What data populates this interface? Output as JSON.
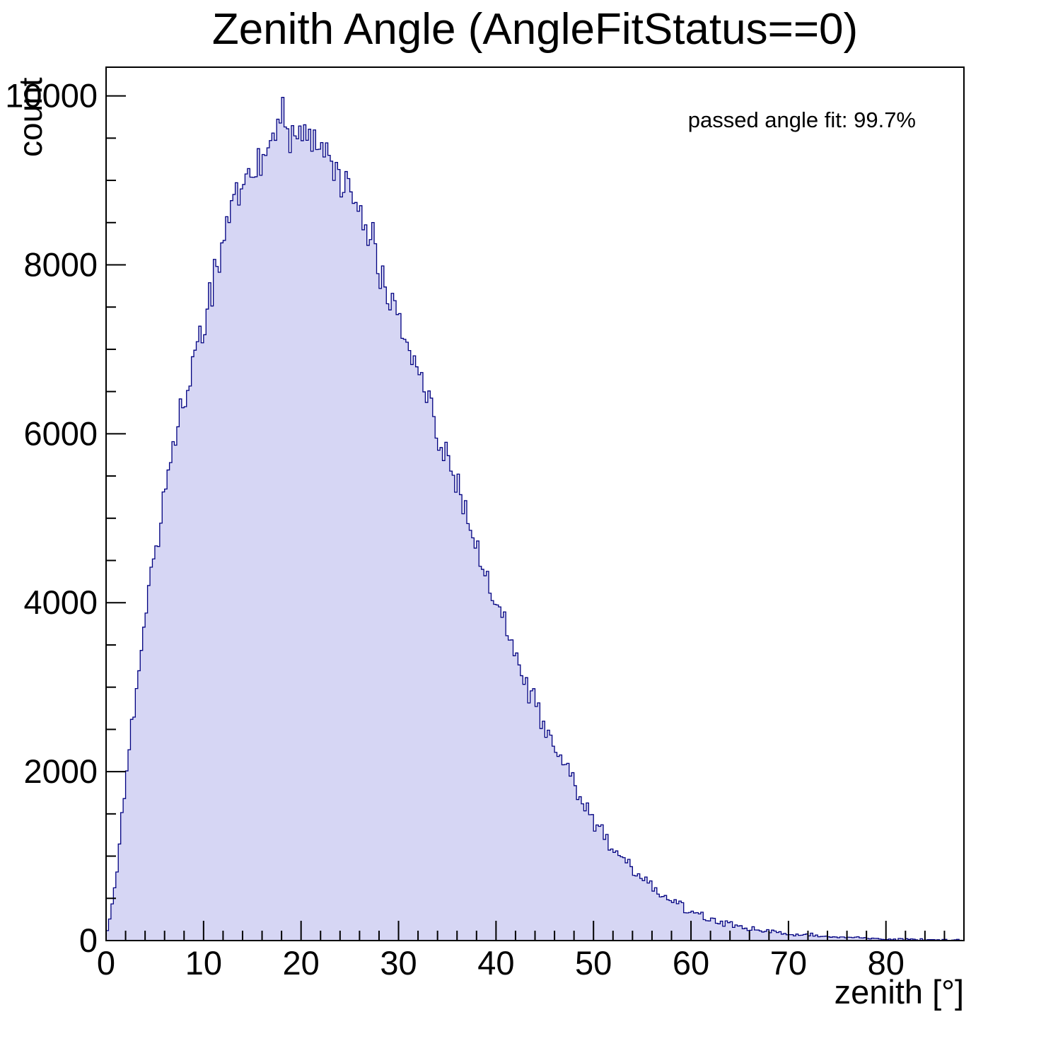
{
  "chart_data": {
    "type": "bar",
    "title": "Zenith Angle (AngleFitStatus==0)",
    "xlabel": "zenith [°]",
    "ylabel": "count",
    "annotation": "passed angle fit: 99.7%",
    "xlim": [
      0,
      88
    ],
    "ylim": [
      0,
      10340
    ],
    "x_major_ticks": [
      0,
      10,
      20,
      30,
      40,
      50,
      60,
      70,
      80
    ],
    "x_minor_step": 2,
    "y_major_ticks": [
      0,
      2000,
      4000,
      6000,
      8000,
      10000
    ],
    "y_minor_step": 500,
    "grid": false,
    "legend_position": "none",
    "bin_width_deg": 0.25,
    "anchors": {
      "zenith_deg": [
        0,
        1,
        2,
        3,
        4,
        5,
        6,
        7,
        8,
        9,
        10,
        11,
        12,
        13,
        14,
        15,
        16,
        17,
        18,
        19,
        20,
        21,
        22,
        23,
        24,
        25,
        26,
        27,
        28,
        29,
        30,
        31,
        32,
        33,
        34,
        35,
        36,
        37,
        38,
        39,
        40,
        41,
        42,
        43,
        44,
        45,
        46,
        47,
        48,
        49,
        50,
        51,
        52,
        53,
        54,
        55,
        56,
        57,
        58,
        59,
        60,
        61,
        62,
        63,
        64,
        65,
        66,
        67,
        68,
        69,
        70,
        71,
        72,
        73,
        74,
        75,
        76,
        77,
        78,
        79,
        80,
        81,
        82,
        83,
        84,
        85,
        86,
        87,
        88
      ],
      "count": [
        30,
        700,
        1900,
        2900,
        3800,
        4600,
        5300,
        5900,
        6400,
        6900,
        7300,
        7900,
        8300,
        8600,
        8900,
        9100,
        9300,
        9500,
        9650,
        9550,
        9500,
        9450,
        9400,
        9300,
        9150,
        8950,
        8650,
        8350,
        8050,
        7750,
        7400,
        7050,
        6700,
        6350,
        6050,
        5700,
        5350,
        5000,
        4650,
        4300,
        4000,
        3700,
        3400,
        3100,
        2800,
        2500,
        2250,
        2050,
        1800,
        1600,
        1400,
        1250,
        1080,
        950,
        830,
        720,
        620,
        540,
        460,
        400,
        340,
        300,
        260,
        225,
        195,
        165,
        145,
        125,
        108,
        95,
        82,
        72,
        62,
        54,
        47,
        41,
        36,
        31,
        27,
        23,
        20,
        17,
        15,
        13,
        11,
        9,
        8,
        7,
        6
      ]
    },
    "style": {
      "fill_color": "#d6d6f4",
      "line_color": "#000080",
      "frame_color": "#000000",
      "background_color": "#ffffff"
    }
  }
}
